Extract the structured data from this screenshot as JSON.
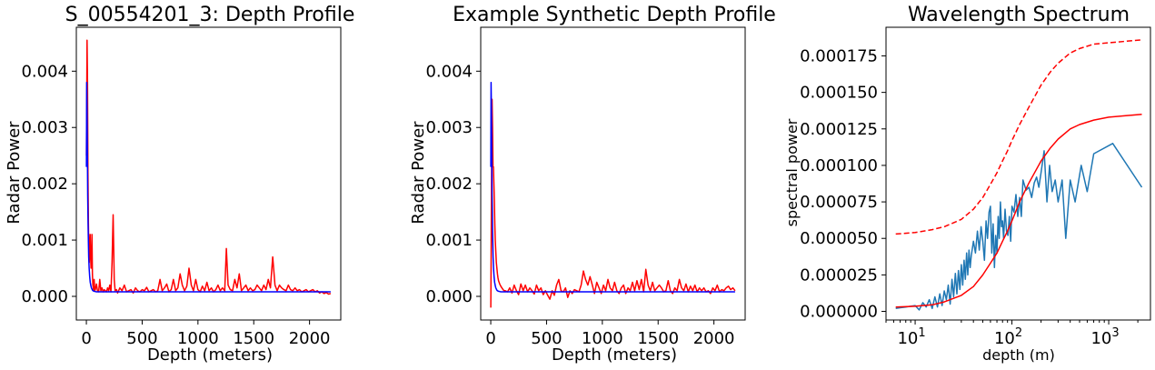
{
  "chart_data": [
    {
      "type": "line",
      "title": "S_00554201_3: Depth Profile",
      "xlabel": "Depth (meters)",
      "ylabel": "Radar Power",
      "xlim": [
        -90,
        2280
      ],
      "ylim": [
        -0.00042,
        0.00478
      ],
      "xticks": [
        0,
        500,
        1000,
        1500,
        2000
      ],
      "xtick_labels": [
        "0",
        "500",
        "1000",
        "1500",
        "2000"
      ],
      "yticks": [
        0,
        0.001,
        0.002,
        0.003,
        0.004
      ],
      "ytick_labels": [
        "0.000",
        "0.001",
        "0.002",
        "0.003",
        "0.004"
      ],
      "grid": false,
      "series": [
        {
          "color": "#ff0000",
          "x": [
            0,
            6,
            10,
            14,
            18,
            22,
            26,
            30,
            34,
            38,
            42,
            46,
            50,
            54,
            58,
            62,
            66,
            70,
            75,
            80,
            90,
            100,
            110,
            120,
            130,
            140,
            150,
            160,
            170,
            180,
            190,
            200,
            210,
            220,
            230,
            240,
            250,
            258,
            270,
            280,
            300,
            320,
            340,
            360,
            380,
            400,
            420,
            440,
            460,
            480,
            500,
            520,
            540,
            560,
            580,
            600,
            620,
            640,
            660,
            680,
            700,
            720,
            740,
            760,
            780,
            800,
            820,
            840,
            860,
            880,
            900,
            920,
            940,
            960,
            980,
            1000,
            1020,
            1040,
            1060,
            1080,
            1100,
            1120,
            1140,
            1160,
            1180,
            1200,
            1220,
            1240,
            1255,
            1270,
            1290,
            1310,
            1330,
            1350,
            1370,
            1390,
            1410,
            1430,
            1450,
            1470,
            1490,
            1510,
            1530,
            1550,
            1570,
            1590,
            1610,
            1630,
            1650,
            1670,
            1690,
            1710,
            1730,
            1750,
            1770,
            1790,
            1810,
            1830,
            1850,
            1870,
            1890,
            1910,
            1930,
            1950,
            1970,
            1990,
            2010,
            2030,
            2050,
            2070,
            2090,
            2110,
            2130,
            2150,
            2170,
            2190
          ],
          "values": [
            0.0025,
            0.00455,
            0.0038,
            0.0022,
            0.0013,
            0.0008,
            0.0006,
            0.0009,
            0.0011,
            0.0007,
            0.0005,
            0.0006,
            0.0011,
            0.0004,
            0.0002,
            0.00015,
            0.0001,
            0.0003,
            0.0001,
            0.00012,
            0.00022,
            0.0001,
            8e-05,
            0.0003,
            0.0001,
            0.00015,
            8e-05,
            0.00012,
            0.0001,
            8e-05,
            0.00015,
            0.0001,
            0.0002,
            8e-05,
            0.0006,
            0.00145,
            0.0003,
            0.0001,
            0.00012,
            6e-05,
            0.00015,
            0.0001,
            0.0002,
            8e-05,
            0.0001,
            0.00012,
            6e-05,
            0.00015,
            0.0001,
            8e-05,
            0.00012,
            0.0001,
            0.00016,
            8e-05,
            0.0001,
            0.00012,
            8e-05,
            0.0001,
            0.0003,
            0.0001,
            0.00015,
            0.00022,
            8e-05,
            0.00012,
            0.0003,
            0.0001,
            0.00015,
            0.0004,
            0.0002,
            0.0001,
            0.00018,
            0.0005,
            0.0002,
            0.0001,
            0.0003,
            0.00012,
            8e-05,
            0.00018,
            0.0001,
            0.00025,
            0.0001,
            0.00015,
            8e-05,
            0.00012,
            0.0002,
            0.0001,
            0.00015,
            0.0001,
            0.00085,
            0.0002,
            0.00012,
            0.0001,
            0.0003,
            0.00015,
            0.0004,
            0.0001,
            0.00015,
            0.0002,
            0.0001,
            0.00015,
            0.0001,
            0.00012,
            0.0002,
            0.00015,
            0.0001,
            0.0002,
            0.00012,
            0.0003,
            0.00015,
            0.0007,
            0.0002,
            0.0001,
            0.0002,
            0.00015,
            0.00012,
            0.0001,
            0.0002,
            0.00012,
            0.0001,
            0.00015,
            0.0001,
            0.00012,
            8e-05,
            0.0001,
            0.00012,
            8e-05,
            0.0001,
            0.00012,
            8e-05,
            0.0001,
            6e-05,
            8e-05,
            5e-05,
            7e-05,
            4e-05,
            5e-05
          ]
        },
        {
          "color": "#0000ff",
          "x": [
            0,
            3,
            6,
            9,
            12,
            15,
            18,
            21,
            25,
            30,
            35,
            40,
            45,
            50,
            55,
            60,
            70,
            80,
            90,
            100,
            150,
            200,
            500,
            1000,
            1500,
            2000,
            2190
          ],
          "values": [
            0.0023,
            0.0038,
            0.0033,
            0.0025,
            0.0018,
            0.0013,
            0.00095,
            0.0007,
            0.0005,
            0.00035,
            0.00025,
            0.00019,
            0.00015,
            0.00013,
            0.00011,
            0.0001,
            9e-05,
            8.5e-05,
            8e-05,
            8e-05,
            8e-05,
            8e-05,
            8e-05,
            8e-05,
            8e-05,
            8e-05,
            8e-05
          ]
        }
      ]
    },
    {
      "type": "line",
      "title": "Example Synthetic Depth Profile",
      "xlabel": "Depth (meters)",
      "ylabel": "Radar Power",
      "xlim": [
        -90,
        2280
      ],
      "ylim": [
        -0.00042,
        0.00478
      ],
      "xticks": [
        0,
        500,
        1000,
        1500,
        2000
      ],
      "xtick_labels": [
        "0",
        "500",
        "1000",
        "1500",
        "2000"
      ],
      "yticks": [
        0,
        0.001,
        0.002,
        0.003,
        0.004
      ],
      "ytick_labels": [
        "0.000",
        "0.001",
        "0.002",
        "0.003",
        "0.004"
      ],
      "grid": false,
      "series": [
        {
          "color": "#ff0000",
          "x": [
            0,
            4,
            8,
            12,
            16,
            20,
            24,
            28,
            32,
            36,
            40,
            45,
            50,
            55,
            60,
            65,
            70,
            80,
            90,
            100,
            110,
            120,
            130,
            150,
            170,
            190,
            210,
            230,
            250,
            270,
            290,
            310,
            330,
            350,
            370,
            390,
            410,
            430,
            450,
            470,
            490,
            510,
            530,
            550,
            570,
            590,
            610,
            630,
            650,
            670,
            690,
            710,
            730,
            750,
            770,
            790,
            810,
            830,
            850,
            870,
            890,
            910,
            930,
            950,
            970,
            990,
            1010,
            1030,
            1050,
            1070,
            1090,
            1110,
            1130,
            1150,
            1170,
            1190,
            1210,
            1230,
            1250,
            1270,
            1290,
            1310,
            1330,
            1350,
            1370,
            1390,
            1410,
            1430,
            1450,
            1470,
            1490,
            1510,
            1530,
            1550,
            1570,
            1590,
            1610,
            1630,
            1650,
            1670,
            1690,
            1710,
            1730,
            1750,
            1770,
            1790,
            1810,
            1830,
            1850,
            1870,
            1890,
            1910,
            1930,
            1950,
            1970,
            1990,
            2010,
            2030,
            2050,
            2070,
            2090,
            2110,
            2130,
            2150,
            2170,
            2190
          ],
          "values": [
            -0.0002,
            0.0008,
            0.0023,
            0.0035,
            0.003,
            0.0023,
            0.0023,
            0.002,
            0.0017,
            0.0013,
            0.001,
            0.0008,
            0.0006,
            0.0005,
            0.0004,
            0.00033,
            0.00028,
            0.00022,
            0.00018,
            0.00015,
            0.00012,
            0.0001,
            0.0001,
            8e-05,
            0.00015,
            6e-05,
            0.0002,
            0.0001,
            3e-05,
            0.00022,
            0.0001,
            0.0002,
            8e-05,
            0.00015,
            0.0001,
            4e-05,
            0.0002,
            0.0001,
            0.00015,
            3e-05,
            0.0001,
            2e-05,
            -5e-05,
            0.0001,
            2e-05,
            0.0002,
            0.0003,
            0.0001,
            8e-05,
            0.00015,
            -2e-05,
            0.0001,
            5e-05,
            0.00012,
            0.0001,
            8e-05,
            0.0002,
            0.00045,
            0.0003,
            0.0002,
            0.00035,
            0.0002,
            5e-05,
            0.00025,
            0.00015,
            5e-05,
            0.0002,
            0.0001,
            0.0003,
            0.00015,
            0.0001,
            0.00025,
            0.0001,
            5e-05,
            0.00015,
            0.0002,
            5e-05,
            0.00015,
            0.0001,
            0.00025,
            0.0001,
            0.00028,
            0.00012,
            0.0003,
            8e-05,
            0.00048,
            0.0002,
            0.0001,
            0.00025,
            0.0001,
            0.00015,
            0.0002,
            0.00015,
            8e-05,
            0.0001,
            0.00028,
            0.0001,
            5e-05,
            0.00015,
            0.0001,
            0.0003,
            0.00015,
            0.0001,
            0.00022,
            8e-05,
            0.00018,
            0.0001,
            0.0002,
            8e-05,
            0.00015,
            0.0001,
            0.00015,
            8e-05,
            0.0001,
            5e-05,
            0.00015,
            0.0001,
            0.0002,
            8e-05,
            0.00012,
            0.0001,
            0.00015,
            0.00018,
            0.00012,
            0.00015,
            0.0001
          ]
        },
        {
          "color": "#0000ff",
          "x": [
            0,
            3,
            6,
            9,
            12,
            15,
            18,
            21,
            25,
            30,
            35,
            40,
            45,
            50,
            55,
            60,
            70,
            80,
            90,
            100,
            150,
            200,
            500,
            1000,
            1500,
            2000,
            2190
          ],
          "values": [
            0.0023,
            0.0038,
            0.0033,
            0.0025,
            0.0018,
            0.0013,
            0.00095,
            0.0007,
            0.0005,
            0.00035,
            0.00025,
            0.00019,
            0.00015,
            0.00013,
            0.00011,
            0.0001,
            9e-05,
            8.5e-05,
            8e-05,
            8e-05,
            8e-05,
            8e-05,
            8e-05,
            8e-05,
            8e-05,
            8e-05,
            8e-05
          ]
        }
      ]
    },
    {
      "type": "line",
      "title": "Wavelength Spectrum",
      "xlabel": "depth (m)",
      "ylabel": "spectral power",
      "xscale": "log",
      "xlim": [
        5,
        2700
      ],
      "ylim": [
        -5.9e-06,
        0.0001946
      ],
      "xticks": [
        10,
        100,
        1000
      ],
      "xtick_labels": [
        "10",
        "10",
        "10"
      ],
      "xtick_exponents": [
        "1",
        "2",
        "3"
      ],
      "yticks": [
        0,
        2.5e-05,
        5e-05,
        7.5e-05,
        0.0001,
        0.000125,
        0.00015,
        0.000175
      ],
      "ytick_labels": [
        "0.000000",
        "0.000025",
        "0.000050",
        "0.000075",
        "0.000100",
        "0.000125",
        "0.000150",
        "0.000175"
      ],
      "grid": false,
      "series": [
        {
          "color": "#1f77b4",
          "x": [
            6.3,
            7,
            8,
            9,
            10,
            11,
            12,
            13,
            14,
            15,
            16,
            17,
            18,
            19,
            20,
            21,
            22,
            23,
            24,
            25,
            26,
            27,
            28,
            29,
            30,
            31,
            32,
            33,
            34,
            35,
            36,
            37,
            38,
            40,
            42,
            44,
            46,
            48,
            50,
            52,
            54,
            56,
            58,
            60,
            62,
            64,
            66,
            68,
            70,
            72,
            74,
            76,
            78,
            80,
            82,
            85,
            88,
            91,
            94,
            97,
            100,
            105,
            110,
            115,
            120,
            125,
            130,
            140,
            150,
            160,
            170,
            180,
            190,
            200,
            215,
            230,
            245,
            260,
            280,
            300,
            330,
            360,
            400,
            450,
            520,
            600,
            700,
            1100,
            2200
          ],
          "values": [
            2e-06,
            2.5e-06,
            3e-06,
            3.5e-06,
            4e-06,
            1e-06,
            6e-06,
            3e-06,
            8e-06,
            2e-06,
            1e-05,
            3e-06,
            1.2e-05,
            4e-06,
            1.4e-05,
            8e-06,
            1.8e-05,
            5e-06,
            2.2e-05,
            1e-05,
            2.6e-05,
            1.2e-05,
            2.8e-05,
            1.5e-05,
            3.2e-05,
            1.8e-05,
            3.5e-05,
            2.2e-05,
            4e-05,
            2.5e-05,
            4.2e-05,
            3e-05,
            3.8e-05,
            4.8e-05,
            4e-05,
            5.5e-05,
            4.2e-05,
            5.8e-05,
            4.8e-05,
            3.5e-05,
            6.2e-05,
            5e-05,
            6.8e-05,
            7.2e-05,
            4e-05,
            6e-05,
            3e-05,
            5.2e-05,
            4e-05,
            6.5e-05,
            5e-05,
            7.5e-05,
            5.8e-05,
            6.2e-05,
            5e-05,
            7e-05,
            5.5e-05,
            5.2e-05,
            6.5e-05,
            4.8e-05,
            7.2e-05,
            6.8e-05,
            8e-05,
            6.5e-05,
            7.8e-05,
            6.5e-05,
            9e-05,
            8.3e-05,
            8.5e-05,
            7.8e-05,
            8.8e-05,
            9.2e-05,
            8.5e-05,
            9.5e-05,
            0.00011,
            7.5e-05,
            0.0001,
            8.2e-05,
            9e-05,
            7.5e-05,
            9e-05,
            5e-05,
            9e-05,
            7.5e-05,
            0.0001,
            8.2e-05,
            0.000108,
            0.000115,
            8.5e-05
          ]
        },
        {
          "color": "#ff0000",
          "line_style": "solid",
          "x": [
            6.3,
            10,
            15,
            20,
            30,
            40,
            50,
            60,
            70,
            80,
            90,
            100,
            120,
            150,
            200,
            250,
            300,
            400,
            500,
            700,
            1000,
            1500,
            2200
          ],
          "values": [
            3e-06,
            3.5e-06,
            4.5e-06,
            6.5e-06,
            1.1e-05,
            1.7e-05,
            2.5e-05,
            3.3e-05,
            4e-05,
            4.8e-05,
            5.5e-05,
            6.2e-05,
            7.5e-05,
            8.8e-05,
            0.000103,
            0.000112,
            0.000118,
            0.000125,
            0.000128,
            0.000131,
            0.000133,
            0.000134,
            0.000135
          ]
        },
        {
          "color": "#ff0000",
          "line_style": "dashed",
          "x": [
            6.3,
            10,
            15,
            20,
            30,
            40,
            50,
            60,
            70,
            80,
            90,
            100,
            120,
            150,
            200,
            250,
            300,
            400,
            500,
            700,
            1000,
            1500,
            2200
          ],
          "values": [
            5.3e-05,
            5.4e-05,
            5.6e-05,
            5.8e-05,
            6.3e-05,
            7e-05,
            7.8e-05,
            8.7e-05,
            9.5e-05,
            0.000103,
            0.00011,
            0.000117,
            0.000128,
            0.00014,
            0.000155,
            0.000164,
            0.00017,
            0.000177,
            0.00018,
            0.000183,
            0.000184,
            0.000185,
            0.000186
          ]
        }
      ]
    }
  ]
}
